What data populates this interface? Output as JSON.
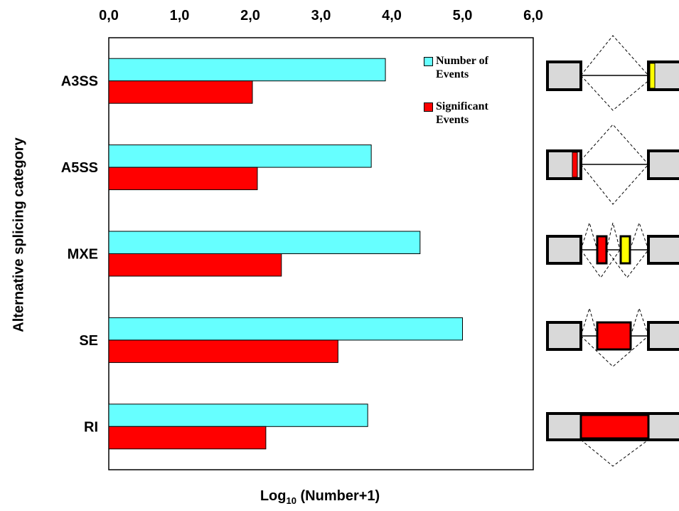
{
  "chart_data": {
    "type": "hbar",
    "xlabel": [
      "Log",
      "10",
      " (Number+1)"
    ],
    "ylabel": "Alternative splicing category",
    "categories": [
      "A3SS",
      "A5SS",
      "MXE",
      "SE",
      "RI"
    ],
    "series": [
      {
        "name": "Number of Events",
        "color": "#66ffff",
        "values": [
          3.91,
          3.71,
          4.4,
          5.0,
          3.66
        ]
      },
      {
        "name": "Significant Events",
        "color": "#ff0000",
        "values": [
          2.03,
          2.1,
          2.44,
          3.24,
          2.22
        ]
      }
    ],
    "xlim": [
      0,
      6
    ],
    "xticks": [
      {
        "value": 0,
        "label": "0,0"
      },
      {
        "value": 1,
        "label": "1,0"
      },
      {
        "value": 2,
        "label": "2,0"
      },
      {
        "value": 3,
        "label": "3,0"
      },
      {
        "value": 4,
        "label": "4,0"
      },
      {
        "value": 5,
        "label": "5,0"
      },
      {
        "value": 6,
        "label": "6,0"
      }
    ],
    "legend": "top-right"
  }
}
